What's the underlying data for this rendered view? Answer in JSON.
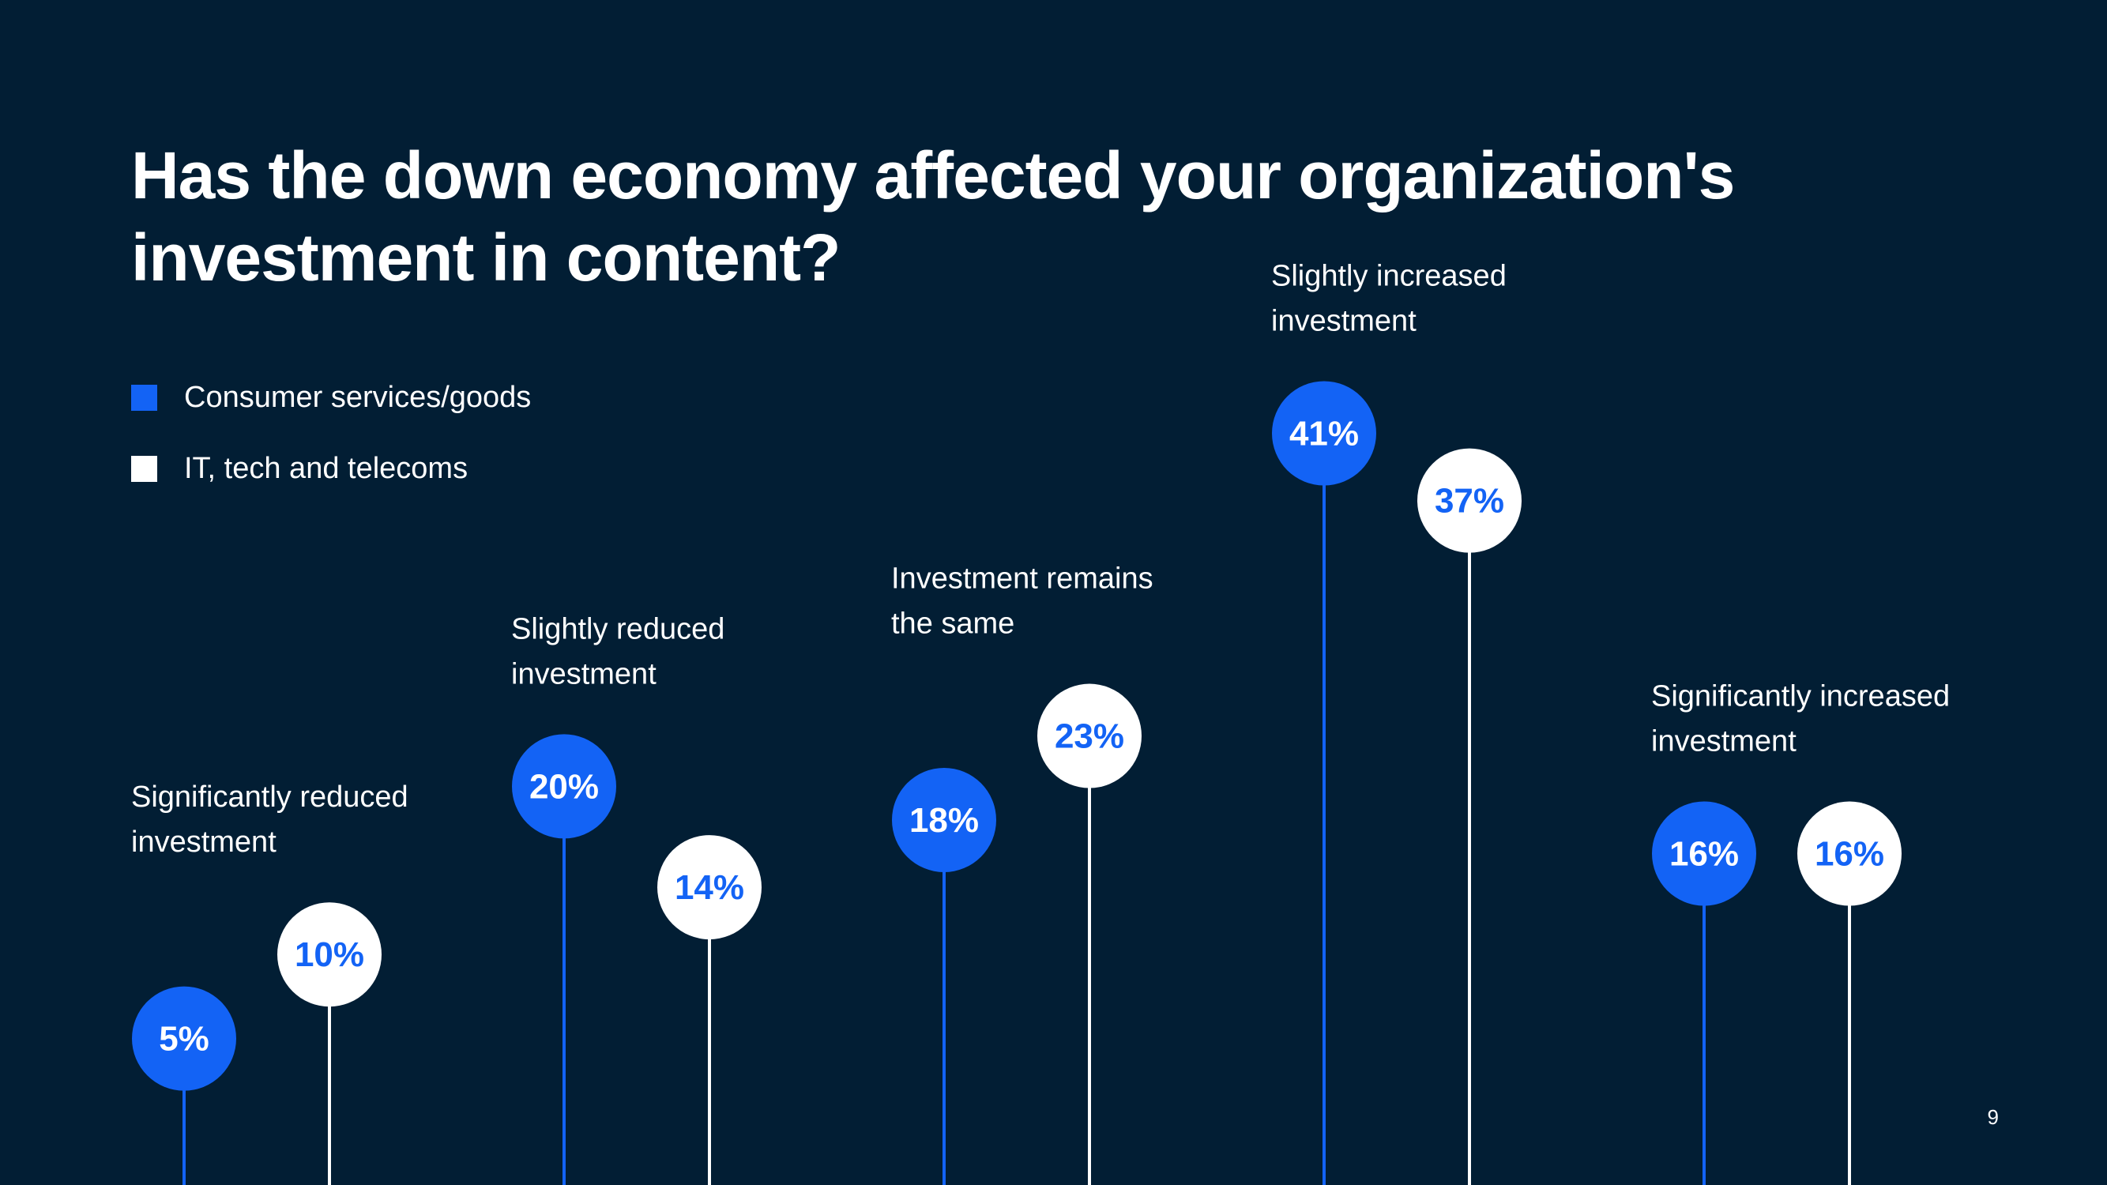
{
  "title": "Has the down economy affected your organization's investment in content?",
  "page_number": "9",
  "colors": {
    "background": "#021e34",
    "consumer": "#1363f5",
    "it": "#ffffff",
    "text": "#ffffff"
  },
  "legend": [
    {
      "label": "Consumer services/goods",
      "color": "#1363f5"
    },
    {
      "label": "IT, tech and telecoms",
      "color": "#ffffff"
    }
  ],
  "chart_data": {
    "type": "lollipop",
    "title": "Has the down economy affected your organization's investment in content?",
    "categories": [
      [
        "Significantly reduced",
        "investment"
      ],
      [
        "Slightly reduced",
        "investment"
      ],
      [
        "Investment remains",
        "the same"
      ],
      [
        "Slightly increased",
        "investment"
      ],
      [
        "Significantly increased",
        "investment"
      ]
    ],
    "series": [
      {
        "name": "Consumer services/goods",
        "color": "#1363f5",
        "values": [
          5,
          20,
          18,
          41,
          16
        ],
        "labels": [
          "5%",
          "20%",
          "18%",
          "41%",
          "16%"
        ]
      },
      {
        "name": "IT, tech and telecoms",
        "color": "#ffffff",
        "values": [
          10,
          14,
          23,
          37,
          16
        ],
        "labels": [
          "10%",
          "14%",
          "23%",
          "37%",
          "16%"
        ]
      }
    ],
    "unit": "%",
    "ylim": [
      0,
      45
    ],
    "grid": false,
    "legend_position": "top-left"
  }
}
